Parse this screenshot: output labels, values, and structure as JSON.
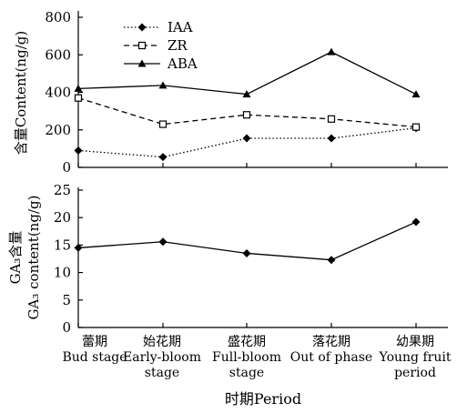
{
  "chart_data": [
    {
      "type": "line",
      "categories": [
        [
          "蕾期",
          "Bud stage"
        ],
        [
          "始花期",
          "Early-bloom",
          "stage"
        ],
        [
          "盛花期",
          "Full-bloom",
          "stage"
        ],
        [
          "落花期",
          "Out of phase"
        ],
        [
          "幼果期",
          "Young fruit",
          "period"
        ]
      ],
      "ylabel": "含量Content(ng/g)",
      "ylim": [
        0,
        800
      ],
      "yticks": [
        "0",
        "200",
        "400",
        "600",
        "800"
      ],
      "legend_position": "top-left",
      "grid": false,
      "series": [
        {
          "name": "IAA",
          "values": [
            90,
            55,
            155,
            155,
            210
          ],
          "style": "dotted",
          "marker": "diamond-filled",
          "color": "#000000"
        },
        {
          "name": "ZR",
          "values": [
            370,
            230,
            280,
            258,
            215
          ],
          "style": "dashed",
          "marker": "square-open",
          "color": "#000000"
        },
        {
          "name": "ABA",
          "values": [
            420,
            437,
            390,
            615,
            390
          ],
          "style": "solid",
          "marker": "triangle-filled",
          "color": "#000000"
        }
      ]
    },
    {
      "type": "line",
      "categories": [
        [
          "蕾期",
          "Bud stage"
        ],
        [
          "始花期",
          "Early-bloom",
          "stage"
        ],
        [
          "盛花期",
          "Full-bloom",
          "stage"
        ],
        [
          "落花期",
          "Out of phase"
        ],
        [
          "幼果期",
          "Young fruit",
          "period"
        ]
      ],
      "ylabel": [
        "GA₃含量",
        "GA₃ content(ng/g)"
      ],
      "xlabel": "时期Period",
      "ylim": [
        0,
        25
      ],
      "yticks": [
        "0",
        "5",
        "10",
        "15",
        "20",
        "25"
      ],
      "grid": false,
      "series": [
        {
          "values": [
            14.5,
            15.6,
            13.5,
            12.3,
            19.2
          ],
          "style": "solid",
          "marker": "diamond-filled",
          "color": "#000000"
        }
      ]
    }
  ]
}
